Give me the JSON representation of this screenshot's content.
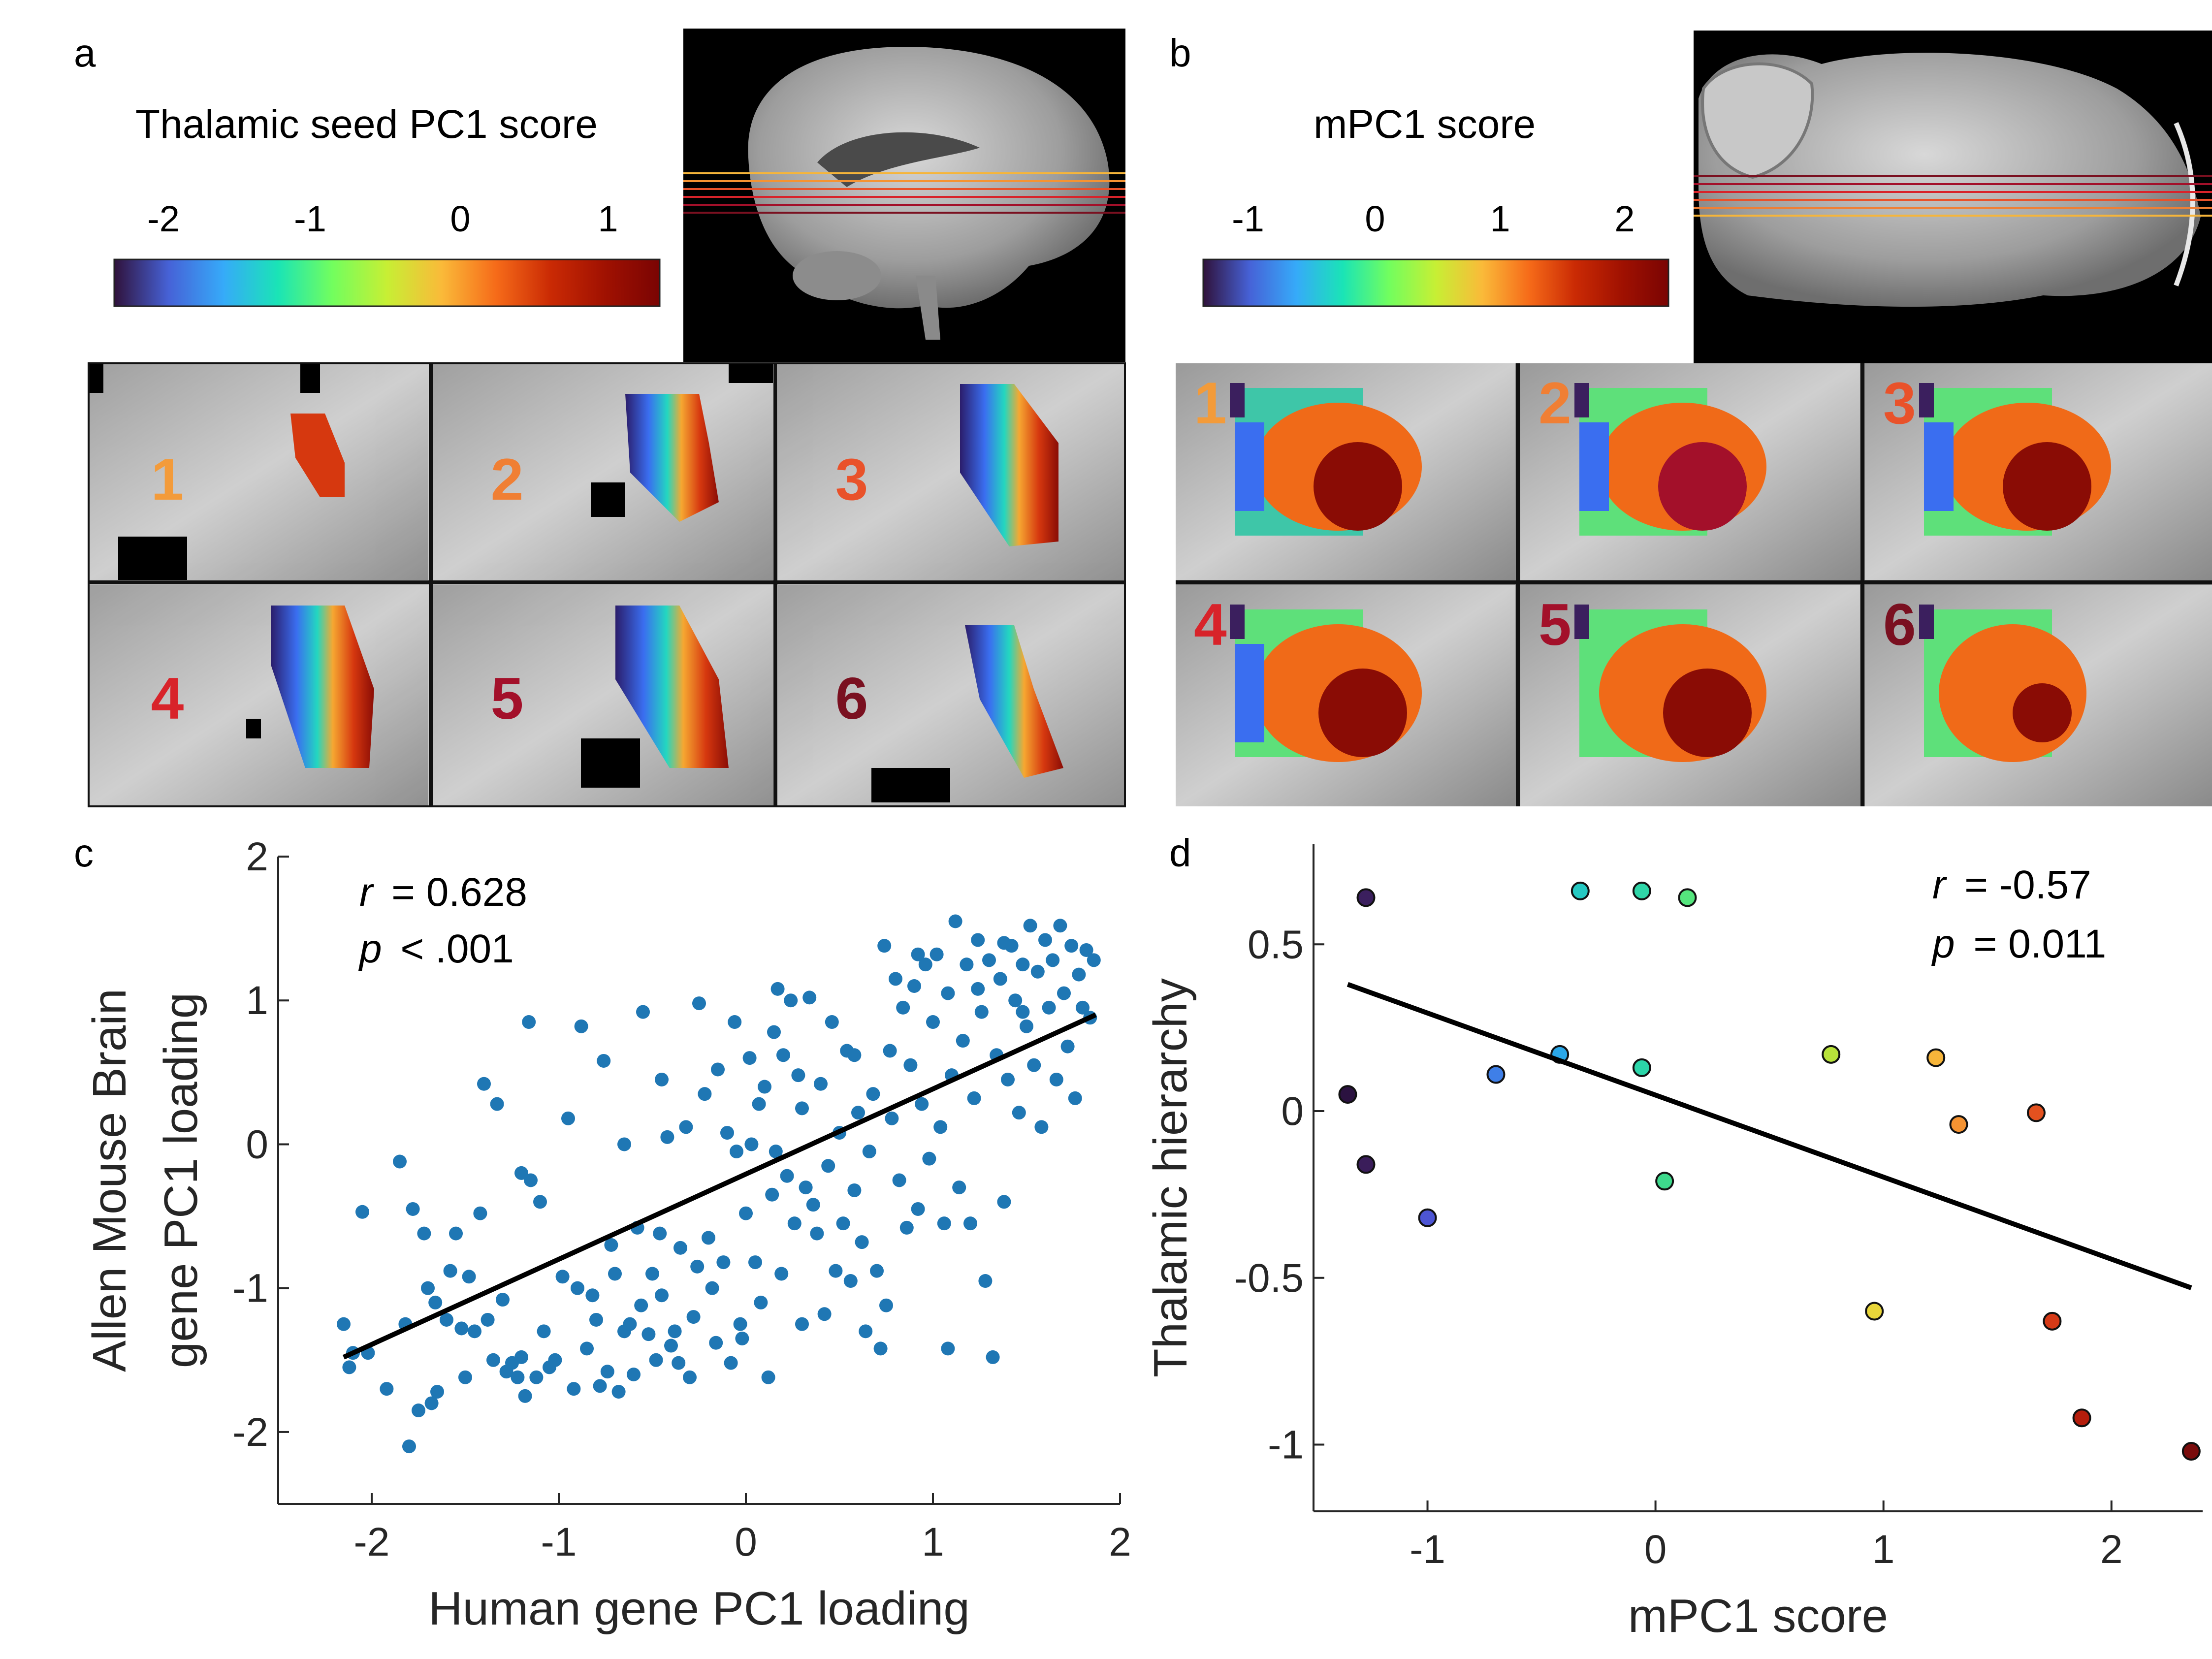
{
  "panels": {
    "a": {
      "letter": "a",
      "colorbar_title": "Thalamic seed PC1 score",
      "colorbar_ticks": [
        "-2",
        "-1",
        "0",
        "1"
      ],
      "slice_numbers": [
        "1",
        "2",
        "3",
        "4",
        "5",
        "6"
      ]
    },
    "b": {
      "letter": "b",
      "colorbar_title": "mPC1 score",
      "colorbar_ticks": [
        "-1",
        "0",
        "1",
        "2"
      ],
      "slice_numbers": [
        "1",
        "2",
        "3",
        "4",
        "5",
        "6"
      ]
    },
    "c": {
      "letter": "c",
      "stat_r": "= 0.628",
      "stat_p": "< .001",
      "r_symbol": "r",
      "p_symbol": "p"
    },
    "d": {
      "letter": "d",
      "stat_r": "= -0.57",
      "stat_p": "= 0.011",
      "r_symbol": "r",
      "p_symbol": "p"
    }
  },
  "colors": {
    "point_c": "#1f77b4",
    "fit_line": "#000000",
    "slice_numbers": [
      "#f39b3a",
      "#f07f34",
      "#e9522a",
      "#d8232a",
      "#a3102a",
      "#7a1020"
    ]
  },
  "chart_data": [
    {
      "type": "scatter",
      "panel": "c",
      "xlabel": "Human gene PC1 loading",
      "ylabel": "Allen Mouse Brain gene PC1 loading",
      "xlim": [
        -2.5,
        2
      ],
      "ylim": [
        -2.5,
        2
      ],
      "xticks": [
        -2,
        -1,
        0,
        1,
        2
      ],
      "yticks": [
        -2,
        -1,
        0,
        1,
        2
      ],
      "fit_line": {
        "x": [
          -2.15,
          1.87
        ],
        "y": [
          -1.48,
          0.9
        ]
      },
      "points": [
        [
          -2.15,
          -1.25
        ],
        [
          -2.12,
          -1.55
        ],
        [
          -2.1,
          -1.45
        ],
        [
          -2.05,
          -0.47
        ],
        [
          -2.02,
          -1.45
        ],
        [
          -1.92,
          -1.7
        ],
        [
          -1.85,
          -0.12
        ],
        [
          -1.82,
          -1.25
        ],
        [
          -1.8,
          -2.1
        ],
        [
          -1.78,
          -0.45
        ],
        [
          -1.75,
          -1.85
        ],
        [
          -1.72,
          -0.62
        ],
        [
          -1.7,
          -1.0
        ],
        [
          -1.68,
          -1.8
        ],
        [
          -1.66,
          -1.1
        ],
        [
          -1.65,
          -1.72
        ],
        [
          -1.6,
          -1.22
        ],
        [
          -1.58,
          -0.88
        ],
        [
          -1.55,
          -0.62
        ],
        [
          -1.52,
          -1.28
        ],
        [
          -1.5,
          -1.62
        ],
        [
          -1.48,
          -0.92
        ],
        [
          -1.45,
          -1.3
        ],
        [
          -1.42,
          -0.48
        ],
        [
          -1.4,
          0.42
        ],
        [
          -1.38,
          -1.22
        ],
        [
          -1.35,
          -1.5
        ],
        [
          -1.33,
          0.28
        ],
        [
          -1.3,
          -1.08
        ],
        [
          -1.28,
          -1.58
        ],
        [
          -1.25,
          -1.52
        ],
        [
          -1.22,
          -1.62
        ],
        [
          -1.2,
          -1.48
        ],
        [
          -1.2,
          -0.2
        ],
        [
          -1.18,
          -1.75
        ],
        [
          -1.16,
          0.85
        ],
        [
          -1.15,
          -0.25
        ],
        [
          -1.12,
          -1.62
        ],
        [
          -1.1,
          -0.4
        ],
        [
          -1.08,
          -1.3
        ],
        [
          -1.05,
          -1.55
        ],
        [
          -1.02,
          -1.5
        ],
        [
          -0.98,
          -0.92
        ],
        [
          -0.95,
          0.18
        ],
        [
          -0.92,
          -1.7
        ],
        [
          -0.9,
          -1.0
        ],
        [
          -0.88,
          0.82
        ],
        [
          -0.85,
          -1.42
        ],
        [
          -0.82,
          -1.05
        ],
        [
          -0.8,
          -1.22
        ],
        [
          -0.78,
          -1.68
        ],
        [
          -0.76,
          0.58
        ],
        [
          -0.74,
          -1.58
        ],
        [
          -0.72,
          -0.7
        ],
        [
          -0.7,
          -0.9
        ],
        [
          -0.68,
          -1.72
        ],
        [
          -0.65,
          -1.3
        ],
        [
          -0.62,
          -1.25
        ],
        [
          -0.6,
          -1.6
        ],
        [
          -0.58,
          -0.58
        ],
        [
          -0.56,
          -1.12
        ],
        [
          -0.55,
          0.92
        ],
        [
          -0.52,
          -1.32
        ],
        [
          -0.5,
          -0.9
        ],
        [
          -0.48,
          -1.5
        ],
        [
          -0.46,
          -0.62
        ],
        [
          -0.45,
          -1.05
        ],
        [
          -0.42,
          0.05
        ],
        [
          -0.4,
          -1.4
        ],
        [
          -0.38,
          -1.3
        ],
        [
          -0.36,
          -1.52
        ],
        [
          -0.35,
          -0.72
        ],
        [
          -0.32,
          0.12
        ],
        [
          -0.3,
          -1.62
        ],
        [
          -0.28,
          -1.2
        ],
        [
          -0.26,
          -0.85
        ],
        [
          -0.25,
          0.98
        ],
        [
          -0.22,
          0.35
        ],
        [
          -0.2,
          -0.65
        ],
        [
          -0.18,
          -1.0
        ],
        [
          -0.16,
          -1.38
        ],
        [
          -0.15,
          0.52
        ],
        [
          -0.12,
          -0.82
        ],
        [
          -0.1,
          0.08
        ],
        [
          -0.08,
          -1.52
        ],
        [
          -0.06,
          0.85
        ],
        [
          -0.05,
          -0.05
        ],
        [
          -0.03,
          -1.25
        ],
        [
          -0.02,
          -1.35
        ],
        [
          0.0,
          -0.48
        ],
        [
          0.02,
          0.6
        ],
        [
          0.03,
          0.0
        ],
        [
          0.05,
          -0.82
        ],
        [
          0.07,
          0.28
        ],
        [
          0.08,
          -1.1
        ],
        [
          0.1,
          0.4
        ],
        [
          0.12,
          -1.62
        ],
        [
          0.14,
          -0.35
        ],
        [
          0.15,
          0.78
        ],
        [
          0.17,
          1.08
        ],
        [
          0.19,
          -0.9
        ],
        [
          0.2,
          0.62
        ],
        [
          0.22,
          -0.22
        ],
        [
          0.24,
          1.0
        ],
        [
          0.26,
          -0.55
        ],
        [
          0.28,
          0.48
        ],
        [
          0.3,
          -1.25
        ],
        [
          0.32,
          -0.3
        ],
        [
          0.34,
          1.02
        ],
        [
          0.36,
          -0.42
        ],
        [
          0.38,
          -0.62
        ],
        [
          0.4,
          0.42
        ],
        [
          0.42,
          -1.18
        ],
        [
          0.44,
          -0.15
        ],
        [
          0.46,
          0.85
        ],
        [
          0.48,
          -0.88
        ],
        [
          0.5,
          0.08
        ],
        [
          0.52,
          -0.55
        ],
        [
          0.54,
          0.65
        ],
        [
          0.56,
          -0.95
        ],
        [
          0.58,
          -0.32
        ],
        [
          0.6,
          0.22
        ],
        [
          0.62,
          -0.68
        ],
        [
          0.64,
          -1.3
        ],
        [
          0.66,
          -0.05
        ],
        [
          0.68,
          0.35
        ],
        [
          0.7,
          -0.88
        ],
        [
          0.72,
          -1.42
        ],
        [
          0.74,
          1.38
        ],
        [
          0.75,
          -1.12
        ],
        [
          0.77,
          0.65
        ],
        [
          0.78,
          0.18
        ],
        [
          0.8,
          1.15
        ],
        [
          0.82,
          -0.25
        ],
        [
          0.84,
          0.95
        ],
        [
          0.86,
          -0.58
        ],
        [
          0.88,
          0.55
        ],
        [
          0.9,
          1.1
        ],
        [
          0.92,
          -0.45
        ],
        [
          0.94,
          0.28
        ],
        [
          0.96,
          1.25
        ],
        [
          0.98,
          -0.1
        ],
        [
          1.0,
          0.85
        ],
        [
          1.02,
          1.32
        ],
        [
          1.04,
          0.12
        ],
        [
          1.06,
          -0.55
        ],
        [
          1.08,
          1.05
        ],
        [
          1.1,
          0.48
        ],
        [
          1.12,
          1.55
        ],
        [
          1.14,
          -0.3
        ],
        [
          1.16,
          0.72
        ],
        [
          1.18,
          1.25
        ],
        [
          1.2,
          -0.55
        ],
        [
          1.22,
          0.32
        ],
        [
          1.24,
          1.42
        ],
        [
          1.26,
          0.92
        ],
        [
          1.28,
          -0.95
        ],
        [
          1.3,
          1.28
        ],
        [
          1.32,
          -1.48
        ],
        [
          1.34,
          0.62
        ],
        [
          1.36,
          1.15
        ],
        [
          1.38,
          -0.4
        ],
        [
          1.4,
          0.45
        ],
        [
          1.42,
          1.38
        ],
        [
          1.44,
          1.0
        ],
        [
          1.46,
          0.22
        ],
        [
          1.48,
          1.25
        ],
        [
          1.5,
          0.82
        ],
        [
          1.52,
          1.52
        ],
        [
          1.54,
          0.55
        ],
        [
          1.56,
          1.2
        ],
        [
          1.58,
          0.12
        ],
        [
          1.6,
          1.42
        ],
        [
          1.62,
          0.95
        ],
        [
          1.64,
          1.28
        ],
        [
          1.66,
          0.45
        ],
        [
          1.68,
          1.52
        ],
        [
          1.7,
          1.05
        ],
        [
          1.72,
          0.68
        ],
        [
          1.74,
          1.38
        ],
        [
          1.76,
          0.32
        ],
        [
          1.78,
          1.18
        ],
        [
          1.8,
          0.95
        ],
        [
          1.82,
          1.35
        ],
        [
          1.84,
          0.88
        ],
        [
          1.86,
          1.28
        ],
        [
          1.38,
          1.4
        ],
        [
          1.24,
          1.08
        ],
        [
          0.92,
          1.32
        ],
        [
          1.08,
          -1.42
        ],
        [
          -0.45,
          0.45
        ],
        [
          0.3,
          0.25
        ],
        [
          0.58,
          0.62
        ],
        [
          -0.65,
          0.0
        ],
        [
          0.16,
          -0.05
        ],
        [
          1.48,
          0.92
        ]
      ]
    },
    {
      "type": "scatter",
      "panel": "d",
      "xlabel": "mPC1 score",
      "ylabel": "Thalamic hierarchy",
      "xlim": [
        -1.5,
        2.4
      ],
      "ylim": [
        -1.2,
        0.8
      ],
      "xticks": [
        -1,
        0,
        1,
        2
      ],
      "yticks": [
        -1,
        -0.5,
        0,
        0.5
      ],
      "fit_line": {
        "x": [
          -1.35,
          2.35
        ],
        "y": [
          0.38,
          -0.53
        ]
      },
      "points": [
        {
          "x": -1.27,
          "y": 0.64,
          "color": "#3b1f5e"
        },
        {
          "x": -0.33,
          "y": 0.66,
          "color": "#26c9c2"
        },
        {
          "x": -0.06,
          "y": 0.66,
          "color": "#2fd6a8"
        },
        {
          "x": 0.14,
          "y": 0.64,
          "color": "#55e57d"
        },
        {
          "x": -1.35,
          "y": 0.05,
          "color": "#2b1240"
        },
        {
          "x": -0.7,
          "y": 0.11,
          "color": "#3f7fe8"
        },
        {
          "x": -0.42,
          "y": 0.17,
          "color": "#2aa7e8"
        },
        {
          "x": -0.06,
          "y": 0.13,
          "color": "#2bd6a9"
        },
        {
          "x": 0.77,
          "y": 0.17,
          "color": "#b8e23a"
        },
        {
          "x": 1.23,
          "y": 0.16,
          "color": "#f6b53a"
        },
        {
          "x": 1.33,
          "y": -0.04,
          "color": "#f59332"
        },
        {
          "x": 1.67,
          "y": -0.005,
          "color": "#e4511f"
        },
        {
          "x": -1.27,
          "y": -0.16,
          "color": "#3a1d5a"
        },
        {
          "x": 0.04,
          "y": -0.21,
          "color": "#3ed98c"
        },
        {
          "x": -1.0,
          "y": -0.32,
          "color": "#4d55d4"
        },
        {
          "x": 0.96,
          "y": -0.6,
          "color": "#e9d63a"
        },
        {
          "x": 1.74,
          "y": -0.63,
          "color": "#d63a17"
        },
        {
          "x": 1.87,
          "y": -0.92,
          "color": "#b51d0c"
        },
        {
          "x": 2.35,
          "y": -1.02,
          "color": "#7a0c0c"
        }
      ]
    }
  ]
}
